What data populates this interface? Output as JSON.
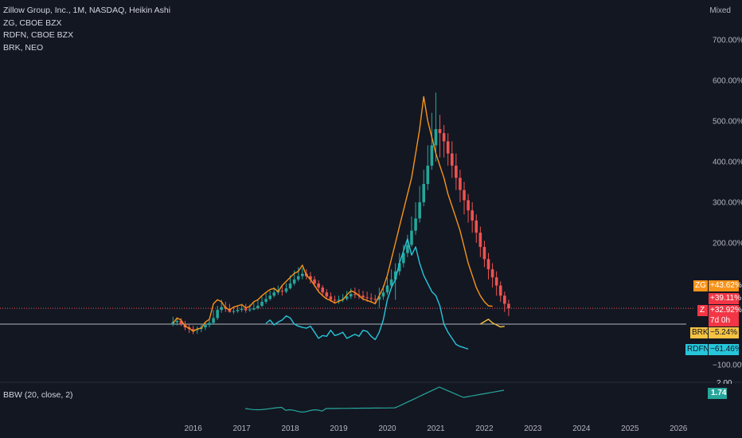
{
  "legend": {
    "main": "Zillow Group, Inc., 1M, NASDAQ, Heikin Ashi",
    "compare": [
      "ZG, CBOE BZX",
      "RDFN, CBOE BZX",
      "BRK, NEO"
    ]
  },
  "scale_mode": "Mixed",
  "indicator": {
    "label": "BBW (20, close, 2)",
    "value": "1.74",
    "partial_tick": "2.00"
  },
  "price_tags": {
    "zg": {
      "symbol": "ZG",
      "value": "+43.62%"
    },
    "z_high": "+39.11%",
    "z": {
      "symbol": "Z",
      "value": "+32.92%",
      "countdown": "7d 0h"
    },
    "brk": {
      "symbol": "BRK",
      "value": "−5.24%"
    },
    "rdfn": {
      "symbol": "RDFN",
      "value": "−61.46%"
    }
  },
  "colors": {
    "background": "#131722",
    "up": "#26a69a",
    "down": "#ef5350",
    "zg": "#f7931a",
    "rdfn": "#26c6da",
    "brk": "#f5c242",
    "bbw": "#26a69a",
    "baseline": "#b2b5be",
    "z_tag": "#f23645",
    "grid": "#1e222d"
  },
  "chart_data": {
    "type": "line",
    "title": "Zillow Group, Inc., 1M, NASDAQ, Heikin Ashi",
    "y_axis": {
      "ticks": [
        700,
        600,
        500,
        400,
        300,
        200,
        -100
      ],
      "tick_labels": [
        "700.00%",
        "600.00%",
        "500.00%",
        "400.00%",
        "300.00%",
        "200.00%",
        "−100.00%"
      ],
      "unit": "%"
    },
    "x_axis": {
      "tick_labels": [
        "2016",
        "2017",
        "2018",
        "2019",
        "2020",
        "2021",
        "2022",
        "2023",
        "2024",
        "2025",
        "2026"
      ]
    },
    "candles": {
      "symbol": "Z",
      "style": "Heikin Ashi",
      "dates": [
        "2015-08",
        "2015-09",
        "2015-10",
        "2015-11",
        "2015-12",
        "2016-01",
        "2016-02",
        "2016-03",
        "2016-04",
        "2016-05",
        "2016-06",
        "2016-07",
        "2016-08",
        "2016-09",
        "2016-10",
        "2016-11",
        "2016-12",
        "2017-01",
        "2017-02",
        "2017-03",
        "2017-04",
        "2017-05",
        "2017-06",
        "2017-07",
        "2017-08",
        "2017-09",
        "2017-10",
        "2017-11",
        "2017-12",
        "2018-01",
        "2018-02",
        "2018-03",
        "2018-04",
        "2018-05",
        "2018-06",
        "2018-07",
        "2018-08",
        "2018-09",
        "2018-10",
        "2018-11",
        "2018-12",
        "2019-01",
        "2019-02",
        "2019-03",
        "2019-04",
        "2019-05",
        "2019-06",
        "2019-07",
        "2019-08",
        "2019-09",
        "2019-10",
        "2019-11",
        "2019-12",
        "2020-01",
        "2020-02",
        "2020-03",
        "2020-04",
        "2020-05",
        "2020-06",
        "2020-07",
        "2020-08",
        "2020-09",
        "2020-10",
        "2020-11",
        "2020-12",
        "2021-01",
        "2021-02",
        "2021-03",
        "2021-04",
        "2021-05",
        "2021-06",
        "2021-07",
        "2021-08",
        "2021-09",
        "2021-10",
        "2021-11",
        "2021-12",
        "2022-01",
        "2022-02",
        "2022-03",
        "2022-04",
        "2022-05",
        "2022-06",
        "2022-07"
      ],
      "open": [
        0,
        5,
        8,
        0,
        -8,
        -12,
        -15,
        -12,
        -8,
        -2,
        3,
        15,
        35,
        42,
        38,
        30,
        32,
        35,
        38,
        34,
        36,
        39,
        45,
        55,
        62,
        70,
        78,
        82,
        80,
        88,
        100,
        110,
        118,
        124,
        118,
        110,
        100,
        90,
        78,
        68,
        60,
        58,
        60,
        62,
        68,
        74,
        72,
        70,
        66,
        64,
        62,
        60,
        68,
        78,
        95,
        110,
        130,
        150,
        175,
        195,
        230,
        260,
        300,
        345,
        390,
        440,
        480,
        470,
        450,
        420,
        390,
        360,
        330,
        305,
        280,
        255,
        225,
        190,
        160,
        135,
        115,
        95,
        70,
        50
      ],
      "high": [
        18,
        16,
        15,
        8,
        0,
        -4,
        -6,
        0,
        5,
        12,
        35,
        45,
        60,
        55,
        50,
        42,
        45,
        50,
        50,
        48,
        52,
        60,
        68,
        76,
        82,
        90,
        95,
        96,
        100,
        120,
        132,
        140,
        138,
        135,
        128,
        118,
        108,
        96,
        86,
        78,
        70,
        70,
        74,
        82,
        88,
        90,
        86,
        82,
        80,
        76,
        72,
        90,
        95,
        115,
        135,
        150,
        175,
        195,
        220,
        265,
        300,
        340,
        380,
        440,
        520,
        570,
        515,
        490,
        470,
        450,
        420,
        380,
        350,
        320,
        300,
        270,
        240,
        205,
        175,
        150,
        130,
        105,
        80,
        60
      ],
      "low": [
        -5,
        -3,
        -5,
        -15,
        -22,
        -25,
        -24,
        -20,
        -15,
        -8,
        -2,
        10,
        28,
        30,
        28,
        25,
        28,
        30,
        28,
        30,
        34,
        36,
        42,
        50,
        58,
        66,
        72,
        70,
        76,
        85,
        95,
        105,
        110,
        110,
        100,
        92,
        82,
        70,
        62,
        55,
        50,
        50,
        54,
        58,
        62,
        64,
        62,
        58,
        55,
        52,
        50,
        40,
        60,
        72,
        88,
        60,
        120,
        140,
        165,
        190,
        220,
        250,
        290,
        330,
        380,
        400,
        410,
        410,
        390,
        360,
        330,
        300,
        270,
        250,
        225,
        200,
        165,
        140,
        110,
        90,
        70,
        55,
        30,
        20
      ],
      "close": [
        5,
        8,
        0,
        -8,
        -12,
        -15,
        -12,
        -8,
        -2,
        3,
        15,
        35,
        42,
        38,
        30,
        32,
        35,
        38,
        34,
        36,
        39,
        45,
        55,
        62,
        70,
        78,
        82,
        80,
        88,
        100,
        110,
        118,
        124,
        118,
        110,
        100,
        90,
        78,
        68,
        60,
        58,
        60,
        62,
        68,
        74,
        72,
        70,
        66,
        64,
        62,
        60,
        68,
        78,
        95,
        110,
        130,
        150,
        175,
        195,
        230,
        260,
        300,
        345,
        390,
        440,
        480,
        470,
        450,
        420,
        390,
        360,
        330,
        305,
        280,
        255,
        225,
        190,
        160,
        135,
        115,
        95,
        70,
        50,
        39
      ]
    },
    "series": [
      {
        "name": "ZG",
        "color": "#f7931a",
        "start": "2015-08",
        "values": [
          2,
          15,
          10,
          -5,
          -10,
          -18,
          -12,
          -10,
          5,
          12,
          50,
          60,
          55,
          40,
          35,
          42,
          45,
          48,
          40,
          44,
          55,
          60,
          70,
          78,
          85,
          88,
          80,
          95,
          105,
          115,
          125,
          130,
          145,
          120,
          110,
          95,
          80,
          70,
          62,
          58,
          52,
          56,
          60,
          72,
          82,
          78,
          70,
          62,
          58,
          55,
          50,
          70,
          90,
          120,
          160,
          200,
          240,
          280,
          320,
          360,
          420,
          480,
          560,
          500,
          460,
          420,
          390,
          360,
          320,
          290,
          260,
          230,
          190,
          150,
          120,
          90,
          70,
          55,
          45,
          44
        ]
      },
      {
        "name": "RDFN",
        "color": "#26c6da",
        "start": "2017-07",
        "values": [
          2,
          10,
          -2,
          5,
          10,
          20,
          15,
          0,
          -5,
          -8,
          -10,
          -5,
          -20,
          -35,
          -28,
          -30,
          -15,
          -28,
          -25,
          -20,
          -35,
          -30,
          -25,
          -30,
          -15,
          -18,
          -30,
          -38,
          -20,
          10,
          60,
          90,
          110,
          150,
          180,
          210,
          170,
          190,
          150,
          120,
          100,
          80,
          70,
          45,
          0,
          -20,
          -35,
          -50,
          -55,
          -58,
          -61.46
        ]
      },
      {
        "name": "BRK",
        "color": "#f5c242",
        "start": "2021-12",
        "values": [
          0,
          6,
          12,
          3,
          -2,
          -7,
          -5.24
        ]
      }
    ],
    "bbw": {
      "name": "BBW (20, close, 2)",
      "last": 1.74
    },
    "log_scale": false,
    "grid": false
  }
}
